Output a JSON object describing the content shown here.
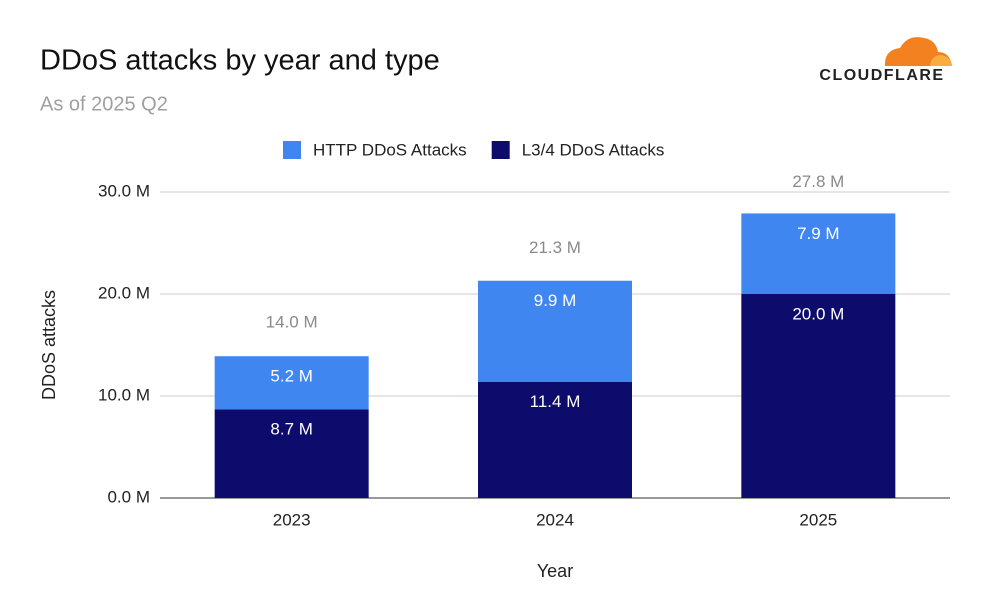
{
  "chart_data": {
    "type": "stacked-bar",
    "title": "DDoS attacks by year and type",
    "subtitle": "As of 2025 Q2",
    "logo_text": "CLOUDFLARE",
    "x_label": "Year",
    "y_label": "DDoS attacks",
    "categories": [
      "2023",
      "2024",
      "2025"
    ],
    "series": [
      {
        "name": "L3/4 DDoS Attacks",
        "color": "#0d0b6b",
        "values": [
          8700000,
          11400000,
          20000000
        ],
        "value_labels": [
          "8.7 M",
          "11.4 M",
          "20.0 M"
        ]
      },
      {
        "name": "HTTP DDoS Attacks",
        "color": "#3f86f1",
        "values": [
          5200000,
          9900000,
          7900000
        ],
        "value_labels": [
          "5.2 M",
          "9.9 M",
          "7.9 M"
        ]
      }
    ],
    "legend_order": [
      1,
      0
    ],
    "totals": [
      14000000,
      21300000,
      27800000
    ],
    "total_labels": [
      "14.0 M",
      "21.3 M",
      "27.8 M"
    ],
    "ylim": [
      0,
      30000000
    ],
    "yticks": [
      {
        "value": 0,
        "label": "0.0 M"
      },
      {
        "value": 10000000,
        "label": "10.0 M"
      },
      {
        "value": 20000000,
        "label": "20.0 M"
      },
      {
        "value": 30000000,
        "label": "30.0 M"
      }
    ],
    "grid": true,
    "legend": "top"
  }
}
